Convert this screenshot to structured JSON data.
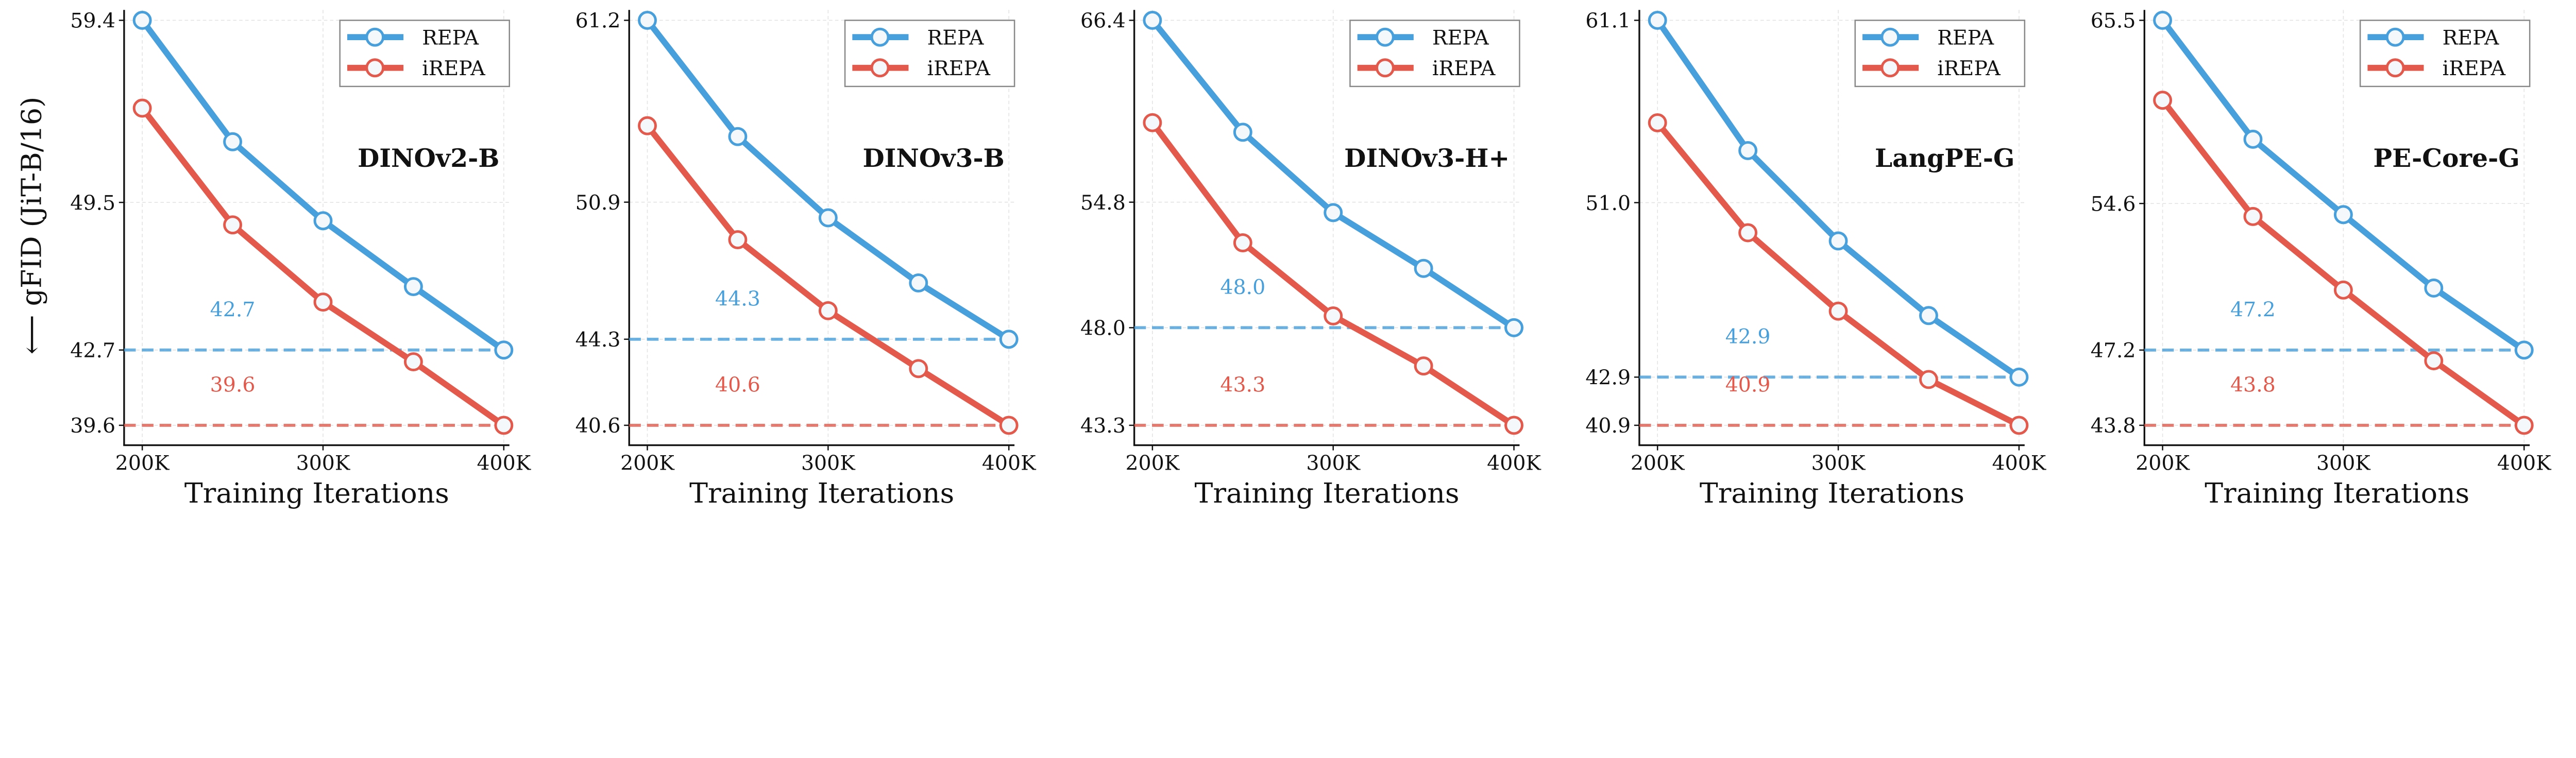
{
  "colors": {
    "REPA": "#479fdc",
    "iREPA": "#e35a4c"
  },
  "legend": {
    "placement": "top-right",
    "entries": [
      "REPA",
      "iREPA"
    ]
  },
  "chart_data": [
    {
      "type": "line",
      "title": "DINOv2-B",
      "xlabel": "Training Iterations",
      "ylabel": "⟵ gFID (JiT-B/16)",
      "yscale": "log",
      "grid": true,
      "x": [
        200000,
        250000,
        300000,
        350000,
        400000
      ],
      "xticks": [
        200000,
        300000,
        400000
      ],
      "xtick_labels": [
        "200K",
        "300K",
        "400K"
      ],
      "yticks": [
        39.6,
        42.7,
        49.5,
        59.4
      ],
      "ytick_labels": [
        "39.6",
        "42.7",
        "49.5",
        "59.4"
      ],
      "series": [
        {
          "name": "REPA",
          "values": [
            59.4,
            52.6,
            48.6,
            45.5,
            42.7
          ]
        },
        {
          "name": "iREPA",
          "values": [
            54.4,
            48.4,
            44.8,
            42.2,
            39.6
          ]
        }
      ],
      "reference_lines": [
        {
          "series": "REPA",
          "value": 42.7,
          "label": "42.7"
        },
        {
          "series": "iREPA",
          "value": 39.6,
          "label": "39.6"
        }
      ]
    },
    {
      "type": "line",
      "title": "DINOv3-B",
      "xlabel": "Training Iterations",
      "ylabel": "",
      "yscale": "log",
      "grid": true,
      "x": [
        200000,
        250000,
        300000,
        350000,
        400000
      ],
      "xticks": [
        200000,
        300000,
        400000
      ],
      "xtick_labels": [
        "200K",
        "300K",
        "400K"
      ],
      "yticks": [
        40.6,
        44.3,
        50.9,
        61.2
      ],
      "ytick_labels": [
        "40.6",
        "44.3",
        "50.9",
        "61.2"
      ],
      "series": [
        {
          "name": "REPA",
          "values": [
            61.2,
            54.4,
            50.1,
            46.9,
            44.3
          ]
        },
        {
          "name": "iREPA",
          "values": [
            55.0,
            49.0,
            45.6,
            43.0,
            40.6
          ]
        }
      ],
      "reference_lines": [
        {
          "series": "REPA",
          "value": 44.3,
          "label": "44.3"
        },
        {
          "series": "iREPA",
          "value": 40.6,
          "label": "40.6"
        }
      ]
    },
    {
      "type": "line",
      "title": "DINOv3-H+",
      "xlabel": "Training Iterations",
      "ylabel": "",
      "yscale": "log",
      "grid": true,
      "x": [
        200000,
        250000,
        300000,
        350000,
        400000
      ],
      "xticks": [
        200000,
        300000,
        400000
      ],
      "xtick_labels": [
        "200K",
        "300K",
        "400K"
      ],
      "yticks": [
        43.3,
        48.0,
        54.8,
        66.4
      ],
      "ytick_labels": [
        "43.3",
        "48.0",
        "54.8",
        "66.4"
      ],
      "series": [
        {
          "name": "REPA",
          "values": [
            66.4,
            59.0,
            54.2,
            51.1,
            48.0
          ]
        },
        {
          "name": "iREPA",
          "values": [
            59.6,
            52.5,
            48.6,
            46.1,
            43.3
          ]
        }
      ],
      "reference_lines": [
        {
          "series": "REPA",
          "value": 48.0,
          "label": "48.0"
        },
        {
          "series": "iREPA",
          "value": 43.3,
          "label": "43.3"
        }
      ]
    },
    {
      "type": "line",
      "title": "LangPE-G",
      "xlabel": "Training Iterations",
      "ylabel": "",
      "yscale": "log",
      "grid": true,
      "x": [
        200000,
        250000,
        300000,
        350000,
        400000
      ],
      "xticks": [
        200000,
        300000,
        400000
      ],
      "xtick_labels": [
        "200K",
        "300K",
        "400K"
      ],
      "yticks": [
        40.9,
        42.9,
        51.0,
        61.1
      ],
      "ytick_labels": [
        "40.9",
        "42.9",
        "51.0",
        "61.1"
      ],
      "series": [
        {
          "name": "REPA",
          "values": [
            61.1,
            53.7,
            49.1,
            45.6,
            42.9
          ]
        },
        {
          "name": "iREPA",
          "values": [
            55.2,
            49.5,
            45.8,
            42.8,
            40.9
          ]
        }
      ],
      "reference_lines": [
        {
          "series": "REPA",
          "value": 42.9,
          "label": "42.9"
        },
        {
          "series": "iREPA",
          "value": 40.9,
          "label": "40.9"
        }
      ]
    },
    {
      "type": "line",
      "title": "PE-Core-G",
      "xlabel": "Training Iterations",
      "ylabel": "",
      "yscale": "log",
      "grid": true,
      "x": [
        200000,
        250000,
        300000,
        350000,
        400000
      ],
      "xticks": [
        200000,
        300000,
        400000
      ],
      "xtick_labels": [
        "200K",
        "300K",
        "400K"
      ],
      "yticks": [
        43.8,
        47.2,
        54.6,
        65.5
      ],
      "ytick_labels": [
        "43.8",
        "47.2",
        "54.6",
        "65.5"
      ],
      "series": [
        {
          "name": "REPA",
          "values": [
            65.5,
            58.2,
            54.0,
            50.2,
            47.2
          ]
        },
        {
          "name": "iREPA",
          "values": [
            60.5,
            53.9,
            50.1,
            46.7,
            43.8
          ]
        }
      ],
      "reference_lines": [
        {
          "series": "REPA",
          "value": 47.2,
          "label": "47.2"
        },
        {
          "series": "iREPA",
          "value": 43.8,
          "label": "43.8"
        }
      ]
    }
  ]
}
